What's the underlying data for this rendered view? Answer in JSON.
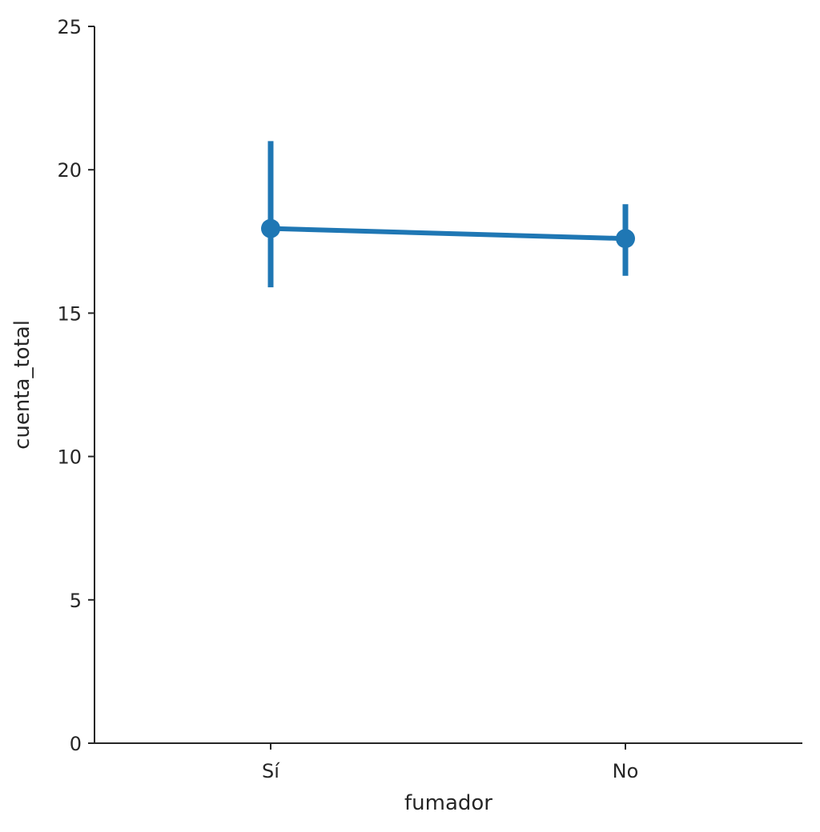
{
  "chart_data": {
    "type": "line",
    "title": "",
    "xlabel": "fumador",
    "ylabel": "cuenta_total",
    "categories": [
      "Sí",
      "No"
    ],
    "ylim": [
      0,
      25
    ],
    "yticks": [
      0,
      5,
      10,
      15,
      20,
      25
    ],
    "grid": false,
    "series": [
      {
        "values": [
          17.95,
          17.6
        ],
        "ci_low": [
          15.9,
          16.3
        ],
        "ci_high": [
          21.0,
          18.8
        ],
        "color": "#1f77b4"
      }
    ]
  }
}
